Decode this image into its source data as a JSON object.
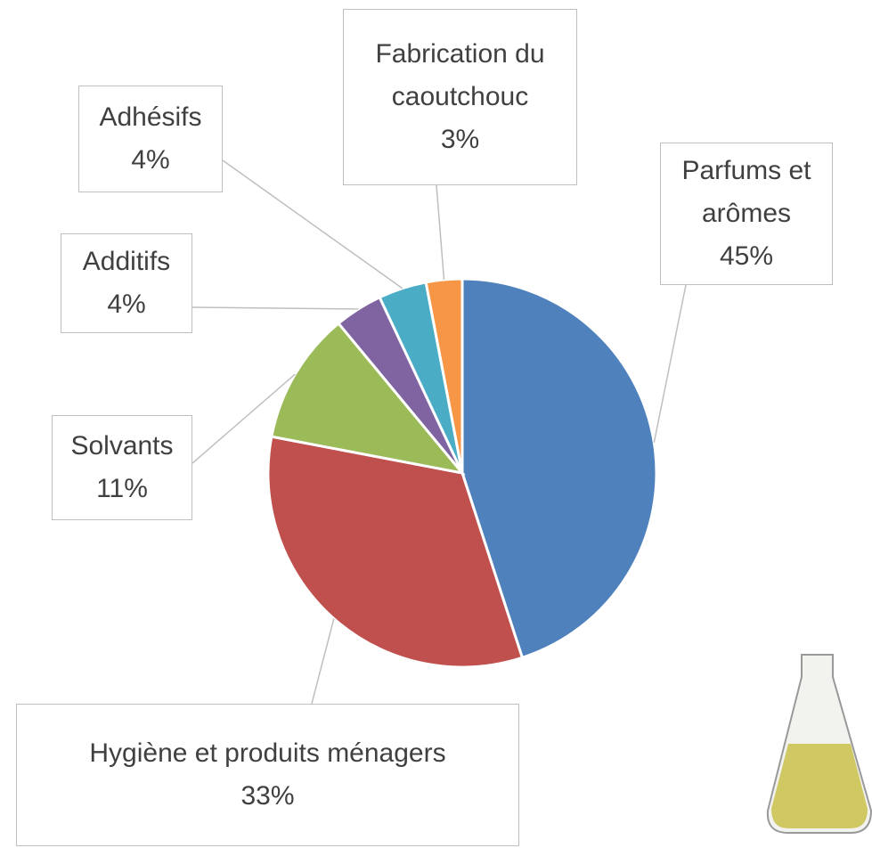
{
  "chart_data": {
    "type": "pie",
    "categories": [
      "Parfums et arômes",
      "Hygiène et produits ménagers",
      "Solvants",
      "Additifs",
      "Adhésifs",
      "Fabrication du caoutchouc"
    ],
    "values": [
      45,
      33,
      11,
      4,
      4,
      3
    ],
    "value_labels": [
      "45%",
      "33%",
      "11%",
      "4%",
      "4%",
      "3%"
    ],
    "colors": [
      "#4f81bd",
      "#c0504d",
      "#9bbb59",
      "#8064a2",
      "#4bacc6",
      "#f79646"
    ]
  }
}
